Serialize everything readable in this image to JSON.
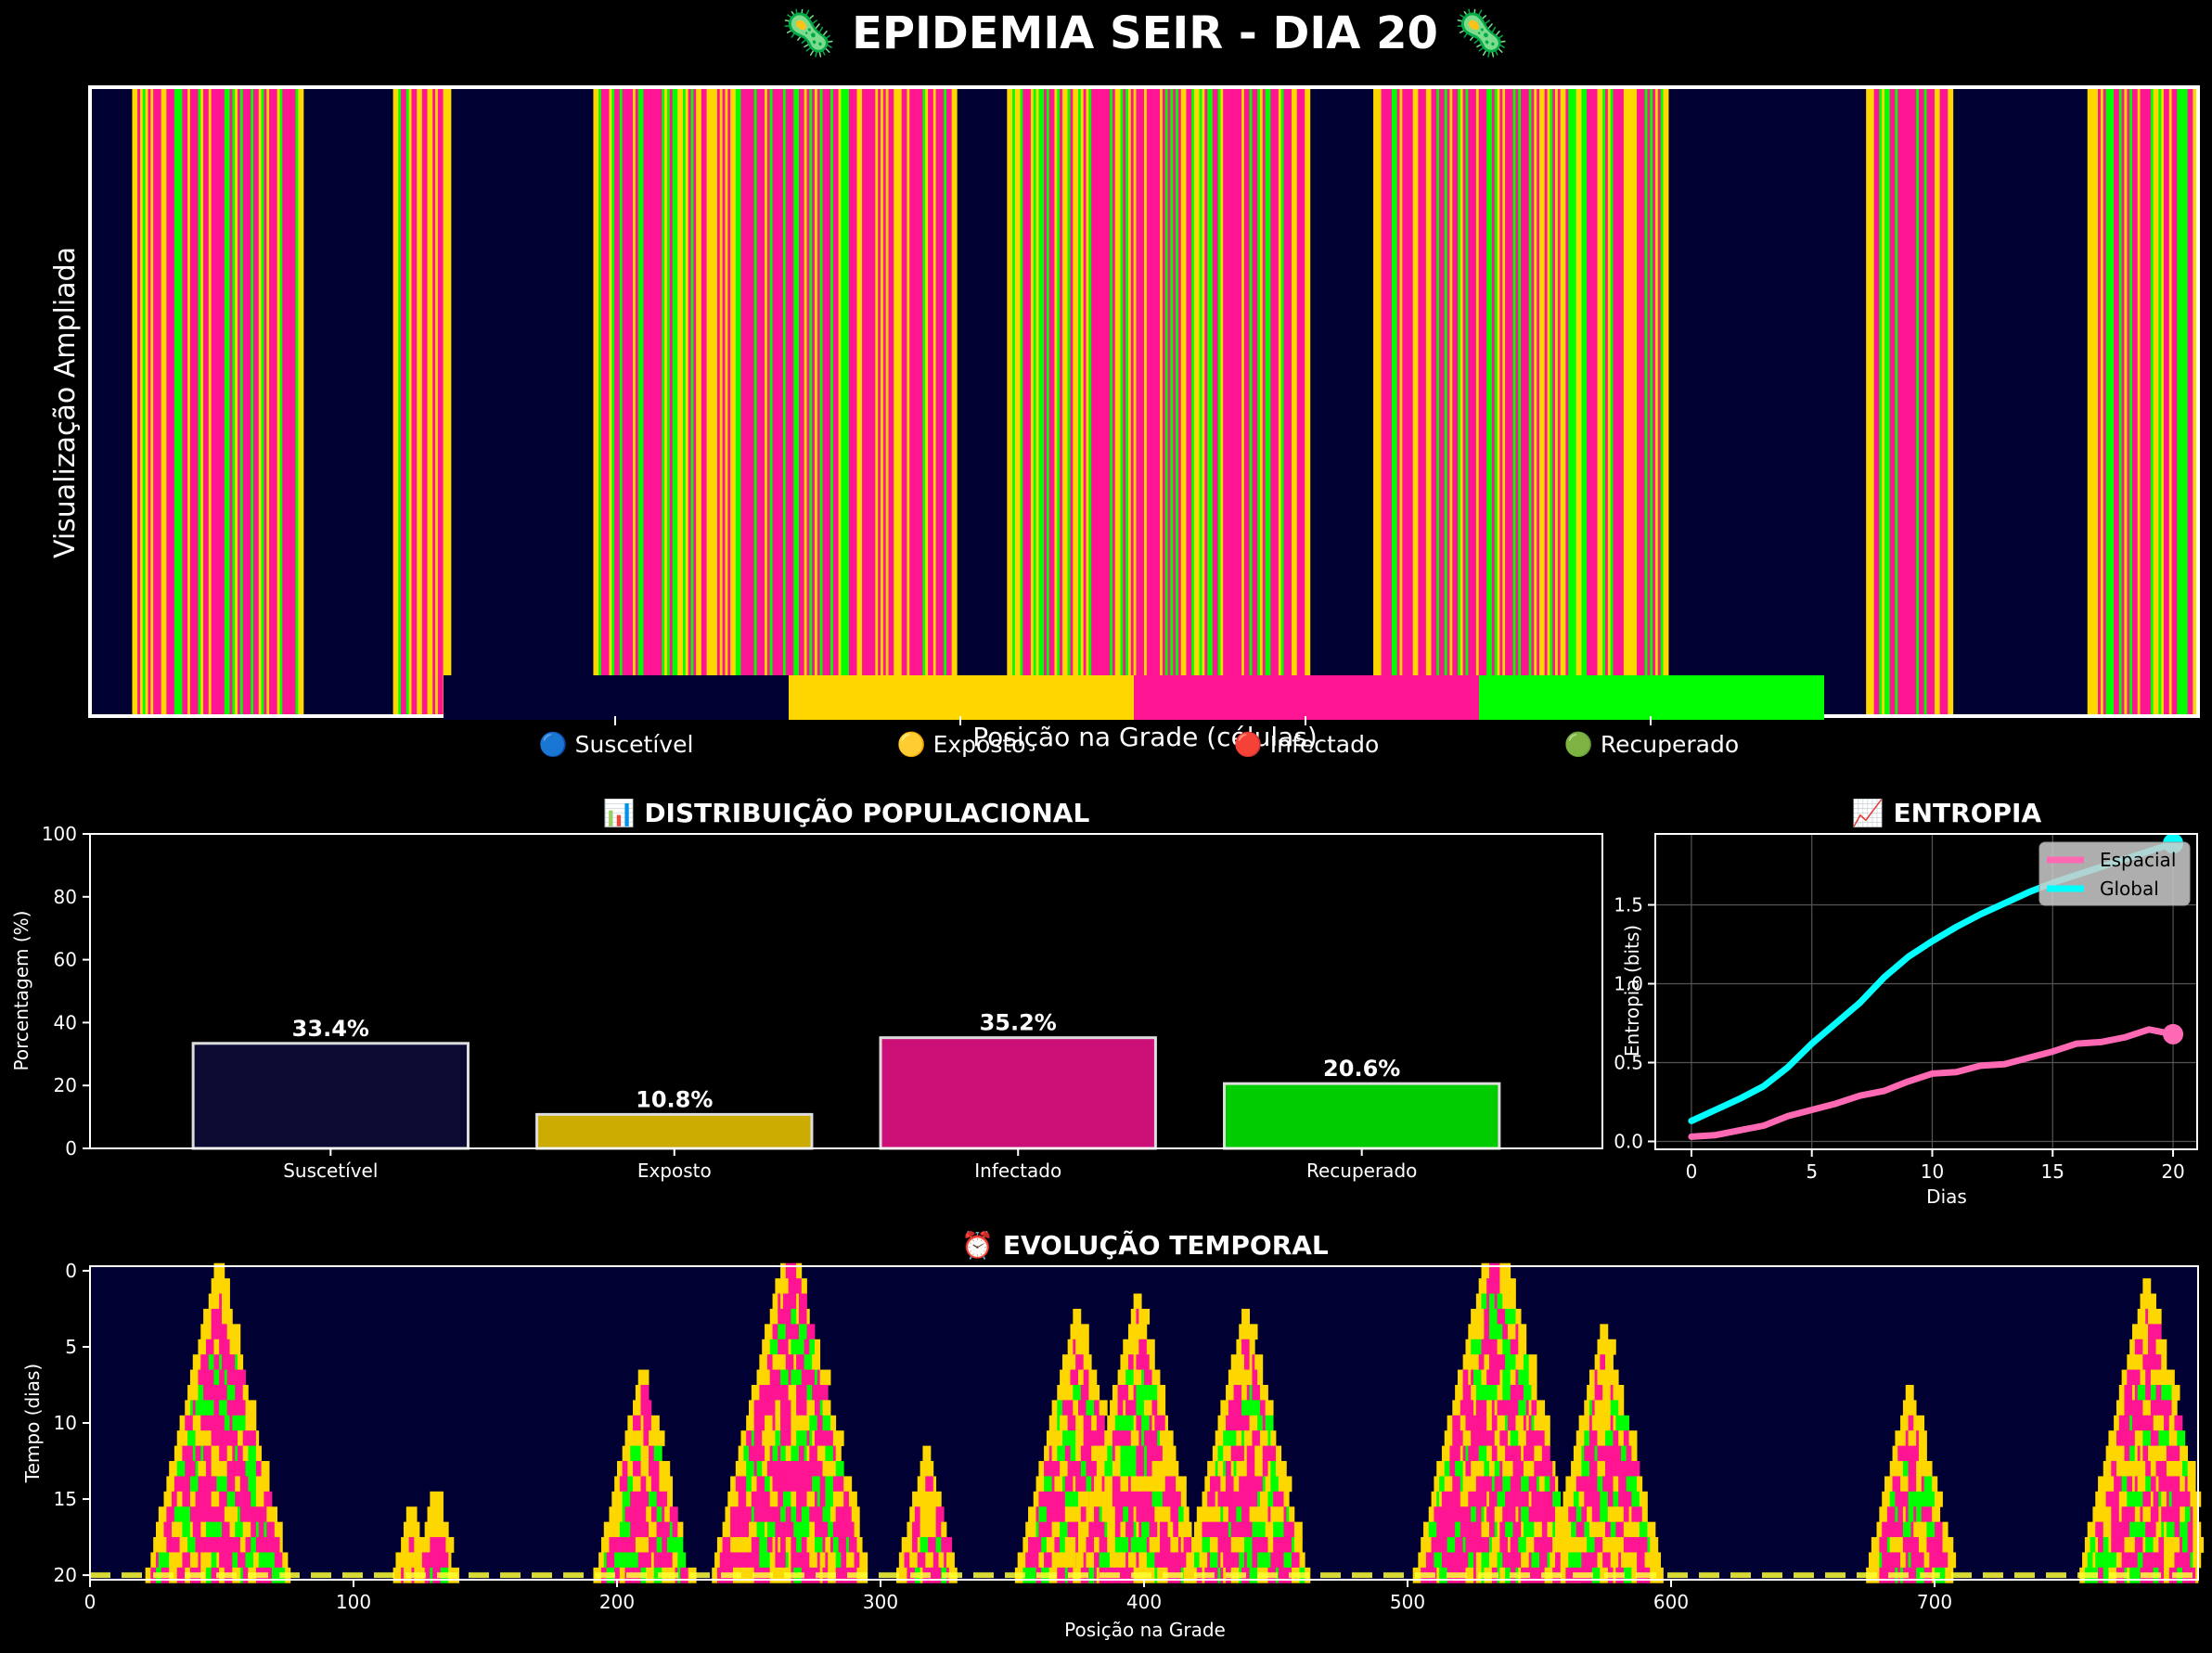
{
  "title": "🦠 EPIDEMIA SEIR - DIA 20 🦠",
  "colors": {
    "background": "#000000",
    "susceptible": "#000033",
    "exposed": "#FFD700",
    "infected": "#FF1493",
    "recovered": "#00FF00",
    "spatial_line": "#FF69B4",
    "global_line": "#00FFFF"
  },
  "chart_data": [
    {
      "type": "heatmap",
      "title": "",
      "xlabel": "Posição na Grade (células)",
      "ylabel": "Visualização Ampliada",
      "grid_cells": 800,
      "legend": {
        "placement": "bottom-center",
        "entries": [
          "🔵 Suscetível",
          "🟡 Exposto",
          "🔴 Infectado",
          "🟢 Recuperado"
        ]
      },
      "outbreak_fronts": [
        {
          "center": 48,
          "width": 32
        },
        {
          "center": 121,
          "width": 6
        },
        {
          "center": 130,
          "width": 6
        },
        {
          "center": 209,
          "width": 18
        },
        {
          "center": 265,
          "width": 42
        },
        {
          "center": 317,
          "width": 11
        },
        {
          "center": 374,
          "width": 26
        },
        {
          "center": 397,
          "width": 24
        },
        {
          "center": 438,
          "width": 24
        },
        {
          "center": 533,
          "width": 46
        },
        {
          "center": 574,
          "width": 24
        },
        {
          "center": 690,
          "width": 16
        },
        {
          "center": 780,
          "width": 22
        }
      ]
    },
    {
      "type": "bar",
      "title": "📊 DISTRIBUIÇÃO POPULACIONAL",
      "categories": [
        "Suscetível",
        "Exposto",
        "Infectado",
        "Recuperado"
      ],
      "values": [
        33.4,
        10.8,
        35.2,
        20.6
      ],
      "value_labels": [
        "33.4%",
        "10.8%",
        "35.2%",
        "20.6%"
      ],
      "ylabel": "Porcentagem (%)",
      "ylim": [
        0,
        100
      ],
      "yticks": [
        "0",
        "20",
        "40",
        "60",
        "80",
        "100"
      ],
      "grid": false
    },
    {
      "type": "line",
      "title": "📈 ENTROPIA",
      "xlabel": "Dias",
      "ylabel": "Entropia (bits)",
      "xlim": [
        -1.5,
        21
      ],
      "ylim": [
        -0.05,
        1.95
      ],
      "xticks": [
        "0",
        "5",
        "10",
        "15",
        "20"
      ],
      "yticks": [
        "0.0",
        "0.5",
        "1.0",
        "1.5"
      ],
      "grid": true,
      "legend": "top-right",
      "x": [
        0,
        1,
        2,
        3,
        4,
        5,
        6,
        7,
        8,
        9,
        10,
        11,
        12,
        13,
        14,
        15,
        16,
        17,
        18,
        19,
        20
      ],
      "series": [
        {
          "name": "Espacial",
          "values": [
            0.03,
            0.04,
            0.07,
            0.1,
            0.16,
            0.2,
            0.24,
            0.29,
            0.32,
            0.38,
            0.43,
            0.44,
            0.48,
            0.49,
            0.53,
            0.57,
            0.62,
            0.63,
            0.66,
            0.71,
            0.68
          ]
        },
        {
          "name": "Global",
          "values": [
            0.13,
            0.2,
            0.27,
            0.35,
            0.47,
            0.62,
            0.75,
            0.88,
            1.04,
            1.17,
            1.27,
            1.36,
            1.44,
            1.51,
            1.58,
            1.64,
            1.69,
            1.74,
            1.79,
            1.84,
            1.89
          ]
        }
      ]
    },
    {
      "type": "heatmap",
      "title": "⏰ EVOLUÇÃO TEMPORAL",
      "xlabel": "Posição na Grade",
      "ylabel": "Tempo (dias)",
      "xlim": [
        0,
        800
      ],
      "ylim": [
        0,
        20
      ],
      "xticks": [
        "0",
        "100",
        "200",
        "300",
        "400",
        "500",
        "600",
        "700"
      ],
      "yticks": [
        "0",
        "5",
        "10",
        "15",
        "20"
      ],
      "current_day": 20,
      "outbreaks": [
        {
          "center": 48,
          "start_day": 0
        },
        {
          "center": 121,
          "start_day": 16
        },
        {
          "center": 130,
          "start_day": 15
        },
        {
          "center": 209,
          "start_day": 7
        },
        {
          "center": 265,
          "start_day": -2
        },
        {
          "center": 317,
          "start_day": 12
        },
        {
          "center": 374,
          "start_day": 3
        },
        {
          "center": 397,
          "start_day": 2
        },
        {
          "center": 438,
          "start_day": 3
        },
        {
          "center": 533,
          "start_day": -3
        },
        {
          "center": 574,
          "start_day": 4
        },
        {
          "center": 690,
          "start_day": 8
        },
        {
          "center": 780,
          "start_day": 1
        }
      ]
    }
  ]
}
